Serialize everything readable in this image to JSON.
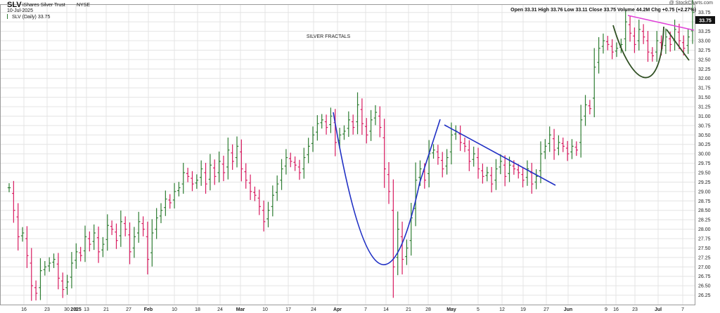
{
  "header": {
    "symbol": "SLV",
    "name": "iShares Silver Trust",
    "exchange": "NYSE",
    "date": "10-Jul-2025",
    "series_label": "SLV (Daily) 33.75",
    "watermark": "@ StockCharts.com",
    "open_label": "Open",
    "open": "33.31",
    "high_label": "High",
    "high": "33.76",
    "low_label": "Low",
    "low": "33.11",
    "close_label": "Close",
    "close": "33.75",
    "volume_label": "Volume",
    "volume": "44.2M",
    "chg_label": "Chg",
    "chg": "+0.75 (+2.27%)",
    "annotation": "SILVER FRACTALS",
    "last_price_tag": "33.75"
  },
  "colors": {
    "up": "#2e7d32",
    "down": "#d81b60",
    "grid": "#e4e4e4",
    "cup_line": "#1f2fc4",
    "trend_line": "#1f2fc4",
    "resistance_line": "#e040d8",
    "small_pattern": "#2f4f22",
    "tag_bg": "#111111"
  },
  "chart_data": {
    "type": "ohlc-bar",
    "title": "SLV iShares Silver Trust NYSE",
    "ylim": [
      26.0,
      33.95
    ],
    "y_ticks": [
      "26.25",
      "26.50",
      "26.75",
      "27.00",
      "27.25",
      "27.50",
      "27.75",
      "28.00",
      "28.25",
      "28.50",
      "28.75",
      "29.00",
      "29.25",
      "29.50",
      "29.75",
      "30.00",
      "30.25",
      "30.50",
      "30.75",
      "31.00",
      "31.25",
      "31.50",
      "31.75",
      "32.00",
      "32.25",
      "32.50",
      "32.75",
      "33.00",
      "33.25",
      "33.50",
      "33.75"
    ],
    "x_ticks": [
      "16",
      "23",
      "30",
      "2025",
      "6",
      "13",
      "21",
      "27",
      "Feb",
      "10",
      "18",
      "24",
      "Mar",
      "10",
      "17",
      "24",
      "Apr",
      "7",
      "14",
      "21",
      "28",
      "May",
      "5",
      "12",
      "19",
      "27",
      "Jun",
      "9",
      "16",
      "23",
      "Jul",
      "7"
    ],
    "closes": [
      29.1,
      28.5,
      27.8,
      27.9,
      27.3,
      26.5,
      26.3,
      26.9,
      27.0,
      27.1,
      27.2,
      26.7,
      26.4,
      26.6,
      27.1,
      27.4,
      27.3,
      27.8,
      27.6,
      27.9,
      27.4,
      27.6,
      28.1,
      28.0,
      27.7,
      28.2,
      28.0,
      27.4,
      27.8,
      28.2,
      28.0,
      27.2,
      27.9,
      28.3,
      28.5,
      28.8,
      28.7,
      29.0,
      29.1,
      29.5,
      29.4,
      29.2,
      29.3,
      29.6,
      29.2,
      29.7,
      29.4,
      29.8,
      29.5,
      30.1,
      29.8,
      30.2,
      29.6,
      29.3,
      29.0,
      28.9,
      28.6,
      28.2,
      28.5,
      28.9,
      29.2,
      29.6,
      29.9,
      29.8,
      29.7,
      29.5,
      29.9,
      30.2,
      30.5,
      30.8,
      30.9,
      30.7,
      31.0,
      30.3,
      30.5,
      30.6,
      30.9,
      30.7,
      31.3,
      30.8,
      30.5,
      30.9,
      31.1,
      30.7,
      29.6,
      29.0,
      27.0,
      28.0,
      27.2,
      27.5,
      28.3,
      29.3,
      29.6,
      29.3,
      30.0,
      30.1,
      29.9,
      29.6,
      29.9,
      30.5,
      30.6,
      30.3,
      30.2,
      29.8,
      30.0,
      29.6,
      29.4,
      29.5,
      29.2,
      29.6,
      29.8,
      29.4,
      29.7,
      29.6,
      29.5,
      29.3,
      29.6,
      29.2,
      29.4,
      30.0,
      30.2,
      30.5,
      30.1,
      30.3,
      30.2,
      30.0,
      30.2,
      30.1,
      30.9,
      31.3,
      31.2,
      32.3,
      32.8,
      33.0,
      32.9,
      32.7,
      32.8,
      32.9,
      33.5,
      33.2,
      32.9,
      33.3,
      33.1,
      32.7,
      32.6,
      33.0,
      32.8,
      33.1,
      32.9,
      33.3,
      33.0,
      32.8,
      33.1,
      33.75
    ]
  }
}
